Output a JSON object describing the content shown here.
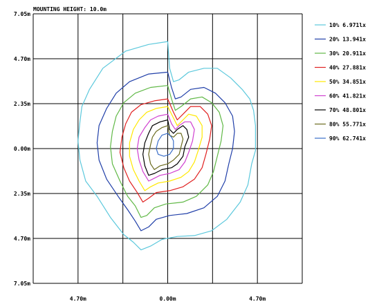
{
  "chart_data": {
    "type": "line",
    "title": "MOUNTING HEIGHT: 10.0m",
    "xlabel": "",
    "ylabel": "",
    "xlim": [
      -7.05,
      7.05
    ],
    "ylim": [
      -7.05,
      7.05
    ],
    "grid": true,
    "legend_position": "right",
    "y_tick_labels": [
      "7.05m",
      "4.70m",
      "2.35m",
      "0.00m",
      "2.35m",
      "4.70m",
      "7.05m"
    ],
    "x_tick_labels": [
      "4.70m",
      "0.00m",
      "4.70m"
    ],
    "series": [
      {
        "name": "10% 6.971lx",
        "color": "#5bc8dc",
        "points": [
          [
            0,
            5.6
          ],
          [
            -1.0,
            5.45
          ],
          [
            -2.2,
            5.1
          ],
          [
            -3.4,
            4.2
          ],
          [
            -4.1,
            3.1
          ],
          [
            -4.5,
            2.2
          ],
          [
            -4.6,
            1.4
          ],
          [
            -4.7,
            0.4
          ],
          [
            -4.6,
            -0.6
          ],
          [
            -4.3,
            -1.7
          ],
          [
            -3.7,
            -2.5
          ],
          [
            -3.0,
            -3.6
          ],
          [
            -2.3,
            -4.5
          ],
          [
            -1.8,
            -4.9
          ],
          [
            -1.4,
            -5.3
          ],
          [
            -0.9,
            -5.1
          ],
          [
            -0.3,
            -4.75
          ],
          [
            0.5,
            -4.6
          ],
          [
            1.4,
            -4.55
          ],
          [
            2.3,
            -4.3
          ],
          [
            3.1,
            -3.7
          ],
          [
            3.8,
            -2.8
          ],
          [
            4.2,
            -1.9
          ],
          [
            4.4,
            -0.8
          ],
          [
            4.6,
            -0.1
          ],
          [
            4.6,
            1.2
          ],
          [
            4.5,
            2.0
          ],
          [
            4.3,
            2.6
          ],
          [
            3.9,
            3.1
          ],
          [
            3.3,
            3.7
          ],
          [
            2.6,
            4.2
          ],
          [
            1.9,
            4.2
          ],
          [
            1.1,
            4.0
          ],
          [
            0.6,
            3.6
          ],
          [
            0.3,
            3.5
          ],
          [
            0.1,
            4.2
          ],
          [
            0,
            5.6
          ]
        ]
      },
      {
        "name": "20% 13.941x",
        "color": "#1f3ea8",
        "points": [
          [
            0,
            4.0
          ],
          [
            -1.0,
            3.9
          ],
          [
            -2.0,
            3.5
          ],
          [
            -2.7,
            2.9
          ],
          [
            -3.2,
            2.1
          ],
          [
            -3.6,
            1.2
          ],
          [
            -3.7,
            0.3
          ],
          [
            -3.6,
            -0.6
          ],
          [
            -3.2,
            -1.6
          ],
          [
            -2.6,
            -2.5
          ],
          [
            -2.1,
            -3.2
          ],
          [
            -1.7,
            -3.8
          ],
          [
            -1.4,
            -4.3
          ],
          [
            -1.0,
            -4.1
          ],
          [
            -0.6,
            -3.7
          ],
          [
            0.1,
            -3.5
          ],
          [
            1.0,
            -3.4
          ],
          [
            1.9,
            -3.1
          ],
          [
            2.6,
            -2.5
          ],
          [
            3.0,
            -1.7
          ],
          [
            3.2,
            -0.8
          ],
          [
            3.4,
            0.0
          ],
          [
            3.5,
            0.9
          ],
          [
            3.4,
            1.7
          ],
          [
            3.0,
            2.4
          ],
          [
            2.5,
            2.9
          ],
          [
            1.9,
            3.2
          ],
          [
            1.2,
            3.1
          ],
          [
            0.7,
            2.7
          ],
          [
            0.4,
            2.6
          ],
          [
            0.2,
            3.2
          ],
          [
            0,
            4.0
          ]
        ]
      },
      {
        "name": "30% 20.911x",
        "color": "#5fb845",
        "points": [
          [
            0,
            3.3
          ],
          [
            -0.9,
            3.2
          ],
          [
            -1.7,
            2.9
          ],
          [
            -2.3,
            2.4
          ],
          [
            -2.7,
            1.7
          ],
          [
            -2.9,
            0.9
          ],
          [
            -3.0,
            0.1
          ],
          [
            -2.9,
            -0.8
          ],
          [
            -2.5,
            -1.7
          ],
          [
            -2.1,
            -2.5
          ],
          [
            -1.7,
            -3.0
          ],
          [
            -1.4,
            -3.6
          ],
          [
            -1.1,
            -3.5
          ],
          [
            -0.7,
            -3.1
          ],
          [
            -0.1,
            -2.9
          ],
          [
            0.8,
            -2.8
          ],
          [
            1.5,
            -2.5
          ],
          [
            2.1,
            -1.9
          ],
          [
            2.4,
            -1.2
          ],
          [
            2.6,
            -0.4
          ],
          [
            2.8,
            0.4
          ],
          [
            2.9,
            1.2
          ],
          [
            2.7,
            1.9
          ],
          [
            2.3,
            2.4
          ],
          [
            1.8,
            2.7
          ],
          [
            1.2,
            2.6
          ],
          [
            0.7,
            2.2
          ],
          [
            0.4,
            2.0
          ],
          [
            0.2,
            2.6
          ],
          [
            0,
            3.3
          ]
        ]
      },
      {
        "name": "40% 27.881x",
        "color": "#e02020",
        "points": [
          [
            0,
            2.6
          ],
          [
            -0.7,
            2.5
          ],
          [
            -1.4,
            2.3
          ],
          [
            -1.9,
            1.9
          ],
          [
            -2.2,
            1.3
          ],
          [
            -2.4,
            0.6
          ],
          [
            -2.5,
            -0.2
          ],
          [
            -2.3,
            -1.0
          ],
          [
            -2.0,
            -1.7
          ],
          [
            -1.6,
            -2.3
          ],
          [
            -1.3,
            -2.8
          ],
          [
            -1.0,
            -2.6
          ],
          [
            -0.6,
            -2.3
          ],
          [
            0.1,
            -2.2
          ],
          [
            0.8,
            -2.0
          ],
          [
            1.4,
            -1.6
          ],
          [
            1.8,
            -1.0
          ],
          [
            2.0,
            -0.3
          ],
          [
            2.2,
            0.5
          ],
          [
            2.3,
            1.2
          ],
          [
            2.1,
            1.8
          ],
          [
            1.7,
            2.2
          ],
          [
            1.2,
            2.2
          ],
          [
            0.8,
            1.8
          ],
          [
            0.5,
            1.5
          ],
          [
            0.3,
            1.9
          ],
          [
            0,
            2.6
          ]
        ]
      },
      {
        "name": "50% 34.851x",
        "color": "#ffe800",
        "points": [
          [
            0,
            2.2
          ],
          [
            -0.6,
            2.1
          ],
          [
            -1.1,
            1.9
          ],
          [
            -1.5,
            1.5
          ],
          [
            -1.8,
            1.0
          ],
          [
            -2.0,
            0.3
          ],
          [
            -2.0,
            -0.4
          ],
          [
            -1.8,
            -1.1
          ],
          [
            -1.5,
            -1.7
          ],
          [
            -1.2,
            -2.2
          ],
          [
            -0.9,
            -2.0
          ],
          [
            -0.5,
            -1.8
          ],
          [
            0.1,
            -1.7
          ],
          [
            0.7,
            -1.5
          ],
          [
            1.1,
            -1.2
          ],
          [
            1.4,
            -0.7
          ],
          [
            1.6,
            -0.1
          ],
          [
            1.8,
            0.6
          ],
          [
            1.8,
            1.2
          ],
          [
            1.5,
            1.7
          ],
          [
            1.1,
            1.8
          ],
          [
            0.8,
            1.5
          ],
          [
            0.5,
            1.2
          ],
          [
            0.3,
            1.6
          ],
          [
            0,
            2.2
          ]
        ]
      },
      {
        "name": "60% 41.821x",
        "color": "#d040d0",
        "points": [
          [
            0,
            1.8
          ],
          [
            -0.5,
            1.7
          ],
          [
            -0.9,
            1.5
          ],
          [
            -1.2,
            1.1
          ],
          [
            -1.5,
            0.6
          ],
          [
            -1.6,
            0.0
          ],
          [
            -1.5,
            -0.6
          ],
          [
            -1.3,
            -1.2
          ],
          [
            -1.0,
            -1.7
          ],
          [
            -0.8,
            -1.6
          ],
          [
            -0.4,
            -1.4
          ],
          [
            0.1,
            -1.3
          ],
          [
            0.6,
            -1.1
          ],
          [
            0.9,
            -0.7
          ],
          [
            1.1,
            -0.2
          ],
          [
            1.3,
            0.4
          ],
          [
            1.4,
            1.0
          ],
          [
            1.2,
            1.4
          ],
          [
            0.9,
            1.4
          ],
          [
            0.6,
            1.2
          ],
          [
            0.4,
            1.0
          ],
          [
            0.2,
            1.3
          ],
          [
            0,
            1.8
          ]
        ]
      },
      {
        "name": "70% 48.801x",
        "color": "#000000",
        "points": [
          [
            0,
            1.5
          ],
          [
            -0.4,
            1.4
          ],
          [
            -0.8,
            1.2
          ],
          [
            -1.0,
            0.8
          ],
          [
            -1.2,
            0.3
          ],
          [
            -1.3,
            -0.3
          ],
          [
            -1.2,
            -0.9
          ],
          [
            -1.0,
            -1.4
          ],
          [
            -0.7,
            -1.3
          ],
          [
            -0.3,
            -1.1
          ],
          [
            0.2,
            -1.0
          ],
          [
            0.5,
            -0.8
          ],
          [
            0.8,
            -0.4
          ],
          [
            0.9,
            0.1
          ],
          [
            1.1,
            0.6
          ],
          [
            1.0,
            1.0
          ],
          [
            0.8,
            1.2
          ],
          [
            0.5,
            1.0
          ],
          [
            0.3,
            0.8
          ],
          [
            0.1,
            1.0
          ],
          [
            0,
            1.5
          ]
        ]
      },
      {
        "name": "80% 55.771x",
        "color": "#6b6b1f",
        "points": [
          [
            0,
            1.2
          ],
          [
            -0.3,
            1.1
          ],
          [
            -0.6,
            0.9
          ],
          [
            -0.8,
            0.6
          ],
          [
            -0.9,
            0.2
          ],
          [
            -1.0,
            -0.3
          ],
          [
            -0.9,
            -0.8
          ],
          [
            -0.7,
            -1.1
          ],
          [
            -0.4,
            -0.9
          ],
          [
            0.0,
            -0.8
          ],
          [
            0.3,
            -0.6
          ],
          [
            0.6,
            -0.3
          ],
          [
            0.7,
            0.1
          ],
          [
            0.8,
            0.5
          ],
          [
            0.7,
            0.8
          ],
          [
            0.5,
            0.8
          ],
          [
            0.3,
            0.6
          ],
          [
            0.1,
            0.7
          ],
          [
            0,
            1.2
          ]
        ]
      },
      {
        "name": "90% 62.741x",
        "color": "#3a6ec8",
        "points": [
          [
            0,
            0.8
          ],
          [
            -0.3,
            0.7
          ],
          [
            -0.5,
            0.4
          ],
          [
            -0.6,
            0.0
          ],
          [
            -0.5,
            -0.3
          ],
          [
            -0.2,
            -0.4
          ],
          [
            0.1,
            -0.3
          ],
          [
            0.3,
            0.0
          ],
          [
            0.3,
            0.4
          ],
          [
            0.2,
            0.6
          ],
          [
            0,
            0.8
          ]
        ]
      }
    ]
  }
}
